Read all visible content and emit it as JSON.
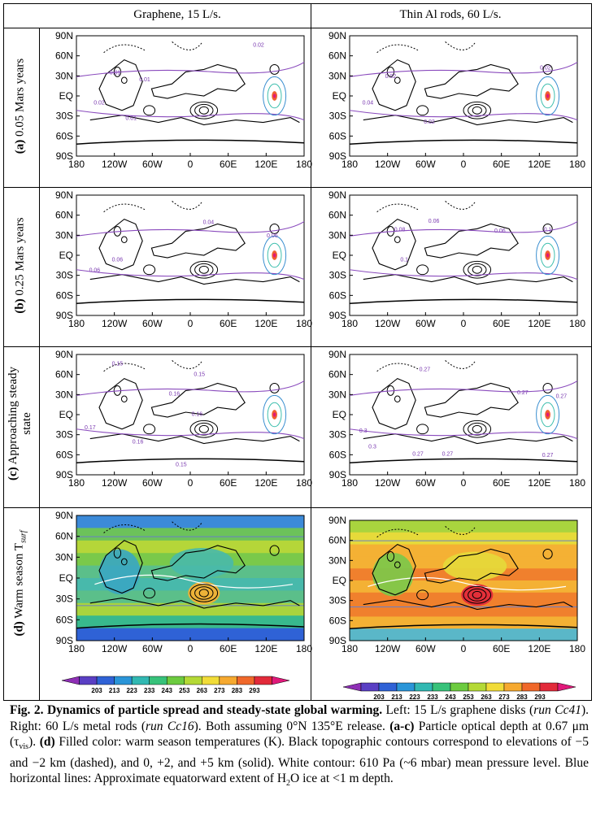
{
  "columns": [
    "Graphene, 15 L/s.",
    "Thin Al rods, 60 L/s."
  ],
  "rows": [
    {
      "letter": "(a)",
      "label": "0.05 Mars years"
    },
    {
      "letter": "(b)",
      "label": "0.25 Mars years"
    },
    {
      "letter": "(c)",
      "label": "Approaching steady state",
      "label_line1": "Approaching steady",
      "label_line2": "state"
    },
    {
      "letter": "(d)",
      "label": "Warm season T",
      "label_sub": "surf"
    }
  ],
  "axes": {
    "lat_ticks": [
      "90N",
      "60N",
      "30N",
      "EQ",
      "30S",
      "60S",
      "90S"
    ],
    "lon_ticks": [
      "180",
      "120W",
      "60W",
      "0",
      "60E",
      "120E",
      "180"
    ]
  },
  "contour_labels": {
    "a_left": [
      "0.02",
      "0.01",
      "0.02",
      "0.01",
      "0.01"
    ],
    "a_right": [
      "0.02",
      "0.04",
      "0.02",
      "0.02"
    ],
    "b_left": [
      "0.04",
      "0.06",
      "0.06",
      "0.06"
    ],
    "b_right": [
      "0.06",
      "0.08",
      "0.06",
      "0.1",
      "0.1"
    ],
    "c_left": [
      "0.15",
      "0.15",
      "0.16",
      "0.16",
      "0.17",
      "0.16",
      "0.15"
    ],
    "c_right": [
      "0.27",
      "0.27",
      "0.27",
      "0.3",
      "0.3",
      "0.27",
      "0.27",
      "0.27"
    ]
  },
  "colorbar": {
    "ticks": [
      "203",
      "213",
      "223",
      "233",
      "243",
      "253",
      "263",
      "273",
      "283",
      "293"
    ],
    "colors": [
      "#8e2fb5",
      "#5a3fc4",
      "#2f62d6",
      "#2a95d8",
      "#31b8b2",
      "#37c27a",
      "#6ccb3f",
      "#b4d936",
      "#f1dc38",
      "#f6a92f",
      "#f0682a",
      "#e22a3a",
      "#e0197a"
    ]
  },
  "caption": {
    "fig_label": "Fig. 2. Dynamics of particle spread and steady-state global warming.",
    "text1": " Left: 15 L/s graphene disks (",
    "run1": "run Cc41",
    "text2": "). Right: 60 L/s metal rods (",
    "run2": "run Cc16",
    "text3": "). Both assuming 0°N 135°E release. ",
    "bold_ac": "(a-c)",
    "text4": " Particle optical depth at 0.67 μm (τ",
    "tau_sub": "vis",
    "text5": "). ",
    "bold_d": "(d)",
    "text6": " Filled color: warm season temperatures (K). Black topographic contours correspond to elevations of −5 and −2 km (dashed), and 0, +2, and +5 km (solid). White contour: 610 Pa (~6 mbar) mean pressure level. Blue horizontal lines: Approximate equatorward extent of H",
    "h2o_sub": "2",
    "text7": "O ice at <1 m depth."
  }
}
